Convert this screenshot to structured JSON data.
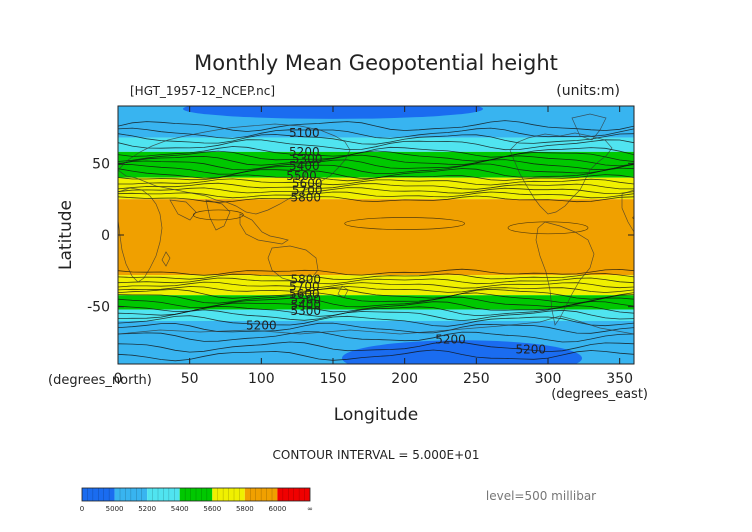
{
  "chart_data": {
    "type": "heatmap",
    "title": "Monthly Mean Geopotential height",
    "file_label": "[HGT_1957-12_NCEP.nc]",
    "units_label": "(units:m)",
    "xlabel": "Longitude",
    "ylabel": "Latitude",
    "x_unit_label": "(degrees_east)",
    "y_unit_label": "(degrees_north)",
    "xlim": [
      0,
      360
    ],
    "ylim": [
      -90,
      90
    ],
    "x_ticks": [
      0,
      50,
      100,
      150,
      200,
      250,
      300,
      350
    ],
    "y_ticks": [
      -50,
      0,
      50
    ],
    "contour_interval_text": "CONTOUR INTERVAL = 5.000E+01",
    "level_text": "level=500 millibar",
    "colorbar": {
      "boundaries": [
        "0",
        "5000",
        "5200",
        "5400",
        "5600",
        "5800",
        "6000",
        "∞"
      ],
      "colors": [
        "#1a6cf0",
        "#38b4f0",
        "#50e4f0",
        "#00c800",
        "#f0f000",
        "#f0a000",
        "#f00000"
      ]
    },
    "zonal_bands": [
      {
        "lat_from": 90,
        "lat_to": 68,
        "color": "#38b4f0"
      },
      {
        "lat_from": 68,
        "lat_to": 58,
        "color": "#50e4f0"
      },
      {
        "lat_from": 58,
        "lat_to": 40,
        "color": "#00c800"
      },
      {
        "lat_from": 40,
        "lat_to": 25,
        "color": "#f0f000"
      },
      {
        "lat_from": 25,
        "lat_to": -28,
        "color": "#f0a000"
      },
      {
        "lat_from": -28,
        "lat_to": -42,
        "color": "#f0f000"
      },
      {
        "lat_from": -42,
        "lat_to": -52,
        "color": "#00c800"
      },
      {
        "lat_from": -52,
        "lat_to": -60,
        "color": "#50e4f0"
      },
      {
        "lat_from": -60,
        "lat_to": -90,
        "color": "#38b4f0"
      }
    ],
    "contour_labels": [
      {
        "text": "5100",
        "lon": 130,
        "lat": 71
      },
      {
        "text": "5200",
        "lon": 130,
        "lat": 58
      },
      {
        "text": "5300",
        "lon": 132,
        "lat": 53
      },
      {
        "text": "5400",
        "lon": 130,
        "lat": 48
      },
      {
        "text": "5500",
        "lon": 128,
        "lat": 41
      },
      {
        "text": "5600",
        "lon": 132,
        "lat": 36
      },
      {
        "text": "5700",
        "lon": 132,
        "lat": 31
      },
      {
        "text": "5800",
        "lon": 131,
        "lat": 26
      },
      {
        "text": "5800",
        "lon": 131,
        "lat": -31
      },
      {
        "text": "5700",
        "lon": 130,
        "lat": -36
      },
      {
        "text": "5600",
        "lon": 130,
        "lat": -41
      },
      {
        "text": "5500",
        "lon": 131,
        "lat": -45
      },
      {
        "text": "5400",
        "lon": 131,
        "lat": -49
      },
      {
        "text": "5300",
        "lon": 131,
        "lat": -53
      },
      {
        "text": "5200",
        "lon": 100,
        "lat": -63
      },
      {
        "text": "5200",
        "lon": 232,
        "lat": -73
      },
      {
        "text": "5200",
        "lon": 288,
        "lat": -80
      }
    ]
  }
}
